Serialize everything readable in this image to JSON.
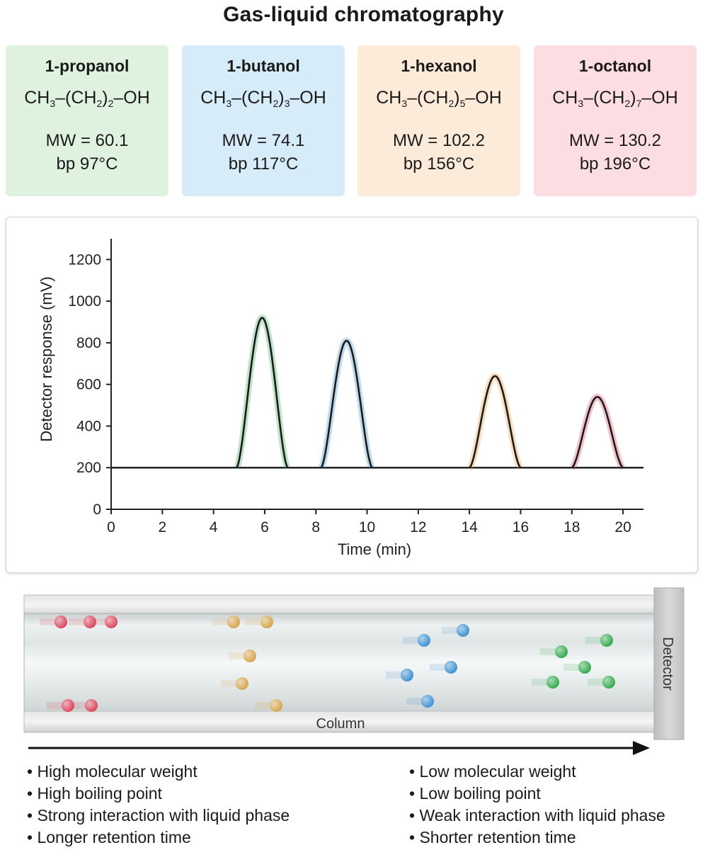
{
  "title": "Gas-liquid chromatography",
  "compounds": [
    {
      "name": "1-propanol",
      "formula": {
        "pre": "CH",
        "s1": "3",
        "mid": "–(CH",
        "s2": "2",
        "post": ")",
        "s3": "2",
        "end": "–OH"
      },
      "mw": "MW = 60.1",
      "bp": "bp 97°C",
      "bg": "#dff2df"
    },
    {
      "name": "1-butanol",
      "formula": {
        "pre": "CH",
        "s1": "3",
        "mid": "–(CH",
        "s2": "2",
        "post": ")",
        "s3": "3",
        "end": "–OH"
      },
      "mw": "MW = 74.1",
      "bp": "bp 117°C",
      "bg": "#d6ecf8"
    },
    {
      "name": "1-hexanol",
      "formula": {
        "pre": "CH",
        "s1": "3",
        "mid": "–(CH",
        "s2": "2",
        "post": ")",
        "s3": "5",
        "end": "–OH"
      },
      "mw": "MW = 102.2",
      "bp": "bp 156°C",
      "bg": "#fdebd9"
    },
    {
      "name": "1-octanol",
      "formula": {
        "pre": "CH",
        "s1": "3",
        "mid": "–(CH",
        "s2": "2",
        "post": ")",
        "s3": "7",
        "end": "–OH"
      },
      "mw": "MW = 130.2",
      "bp": "bp 196°C",
      "bg": "#fcdde1"
    }
  ],
  "chart_data": {
    "type": "line",
    "xlabel": "Time (min)",
    "ylabel": "Detector response (mV)",
    "xlim": [
      0,
      20.8
    ],
    "ylim": [
      0,
      1300
    ],
    "xticks": [
      0,
      2,
      4,
      6,
      8,
      10,
      12,
      14,
      16,
      18,
      20
    ],
    "yticks": [
      0,
      200,
      400,
      600,
      800,
      1000,
      1200
    ],
    "baseline": 200,
    "grid": false,
    "peaks": [
      {
        "compound": "1-propanol",
        "center": 5.9,
        "start": 4.9,
        "end": 6.9,
        "height": 920,
        "color": "#1f9a3c"
      },
      {
        "compound": "1-butanol",
        "center": 9.2,
        "start": 8.2,
        "end": 10.2,
        "height": 810,
        "color": "#1f7fbf"
      },
      {
        "compound": "1-hexanol",
        "center": 15.0,
        "start": 14.0,
        "end": 16.0,
        "height": 640,
        "color": "#e38a1e"
      },
      {
        "compound": "1-octanol",
        "center": 19.0,
        "start": 18.0,
        "end": 20.0,
        "height": 540,
        "color": "#d62b43"
      }
    ]
  },
  "column": {
    "column_label": "Column",
    "detector_label": "Detector",
    "colors": {
      "octanol": "#d9435a",
      "hexanol": "#d4a24a",
      "butanol": "#3a8fd0",
      "propanol": "#2ea74a"
    }
  },
  "bullets_left": [
    "• High molecular weight",
    "• High boiling point",
    "• Strong interaction with liquid phase",
    "• Longer retention time"
  ],
  "bullets_right": [
    "• Low molecular weight",
    "• Low boiling point",
    "• Weak interaction with liquid phase",
    "• Shorter retention time"
  ]
}
